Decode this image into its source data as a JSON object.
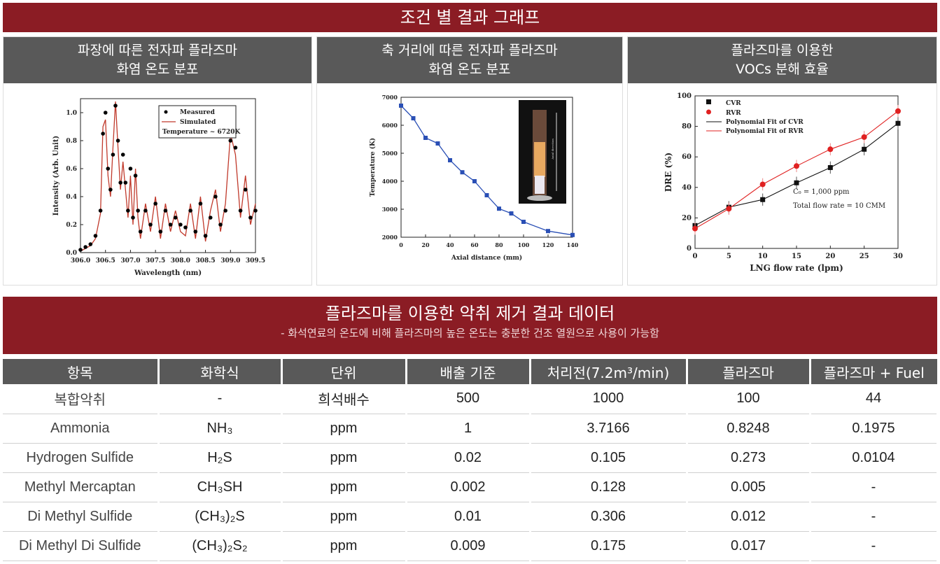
{
  "title": "조건 별 결과 그래프",
  "panels": [
    {
      "title_line1": "파장에 따른 전자파 플라즈마",
      "title_line2": "화염 온도 분포"
    },
    {
      "title_line1": "축 거리에 따른 전자파 플라즈마",
      "title_line2": "화염 온도 분포"
    },
    {
      "title_line1": "플라즈마를 이용한",
      "title_line2": "VOCs 분해 효율"
    }
  ],
  "table_section": {
    "title": "플라즈마를 이용한 악취 제거 결과 데이터",
    "subtitle": "- 화석연료의 온도에 비해 플라즈마의 높은 온도는 충분한 건조 열원으로 사용이 가능함"
  },
  "table": {
    "headers": [
      "항목",
      "화학식",
      "단위",
      "배출 기준",
      "처리전(7.2m³/min)",
      "플라즈마",
      "플라즈마 + Fuel"
    ],
    "rows": [
      [
        "복합악취",
        "-",
        "희석배수",
        "500",
        "1000",
        "100",
        "44"
      ],
      [
        "Ammonia",
        "NH₃",
        "ppm",
        "1",
        "3.7166",
        "0.8248",
        "0.1975"
      ],
      [
        "Hydrogen Sulfide",
        "H₂S",
        "ppm",
        "0.02",
        "0.105",
        "0.273",
        "0.0104"
      ],
      [
        "Methyl Mercaptan",
        "CH₃SH",
        "ppm",
        "0.002",
        "0.128",
        "0.005",
        "-"
      ],
      [
        "Di Methyl Sulfide",
        "(CH₃)₂S",
        "ppm",
        "0.01",
        "0.306",
        "0.012",
        "-"
      ],
      [
        "Di Methyl Di Sulfide",
        "(CH₃)₂S₂",
        "ppm",
        "0.009",
        "0.175",
        "0.017",
        "-"
      ]
    ]
  },
  "chart_data": [
    {
      "type": "line",
      "xlabel": "Wavelength (nm)",
      "ylabel": "Intensity (Arb. Unit)",
      "xlim": [
        306.0,
        309.5
      ],
      "ylim": [
        0.0,
        1.1
      ],
      "xticks": [
        "306.0",
        "306.5",
        "307.0",
        "307.5",
        "308.0",
        "308.5",
        "309.0",
        "309.5"
      ],
      "yticks": [
        "0.0",
        "0.2",
        "0.4",
        "0.6",
        "0.8",
        "1.0"
      ],
      "legend": [
        "Measured",
        "Simulated",
        "Temperature ~ 6720K"
      ],
      "series": [
        {
          "name": "Measured",
          "style": "points",
          "color": "#000000",
          "x": [
            306.0,
            306.1,
            306.2,
            306.3,
            306.4,
            306.45,
            306.5,
            306.55,
            306.6,
            306.65,
            306.7,
            306.75,
            306.8,
            306.85,
            306.9,
            306.95,
            307.0,
            307.05,
            307.1,
            307.15,
            307.2,
            307.3,
            307.4,
            307.5,
            307.6,
            307.7,
            307.8,
            307.9,
            308.0,
            308.1,
            308.2,
            308.3,
            308.4,
            308.5,
            308.6,
            308.7,
            308.8,
            308.9,
            309.0,
            309.1,
            309.2,
            309.3,
            309.4,
            309.5
          ],
          "y": [
            0.02,
            0.04,
            0.06,
            0.12,
            0.3,
            0.85,
            1.0,
            0.6,
            0.45,
            0.7,
            1.05,
            0.8,
            0.5,
            0.7,
            0.5,
            0.3,
            0.6,
            0.25,
            0.55,
            0.3,
            0.15,
            0.3,
            0.2,
            0.35,
            0.15,
            0.3,
            0.2,
            0.25,
            0.2,
            0.18,
            0.3,
            0.15,
            0.35,
            0.12,
            0.25,
            0.4,
            0.2,
            0.3,
            0.8,
            0.75,
            0.3,
            0.45,
            0.25,
            0.3
          ]
        },
        {
          "name": "Simulated",
          "style": "line",
          "color": "#c0392b",
          "x": [
            306.0,
            306.1,
            306.2,
            306.3,
            306.4,
            306.45,
            306.5,
            306.55,
            306.6,
            306.65,
            306.7,
            306.75,
            306.8,
            306.85,
            306.9,
            306.95,
            307.0,
            307.05,
            307.1,
            307.15,
            307.2,
            307.3,
            307.4,
            307.5,
            307.6,
            307.7,
            307.8,
            307.9,
            308.0,
            308.1,
            308.2,
            308.3,
            308.4,
            308.5,
            308.6,
            308.7,
            308.8,
            308.9,
            309.0,
            309.1,
            309.2,
            309.3,
            309.4,
            309.5
          ],
          "y": [
            0.01,
            0.03,
            0.05,
            0.1,
            0.28,
            0.9,
            0.95,
            0.55,
            0.4,
            0.75,
            1.08,
            0.75,
            0.45,
            0.65,
            0.45,
            0.25,
            0.55,
            0.2,
            0.6,
            0.25,
            0.1,
            0.35,
            0.15,
            0.4,
            0.1,
            0.35,
            0.15,
            0.3,
            0.15,
            0.12,
            0.35,
            0.1,
            0.4,
            0.08,
            0.3,
            0.45,
            0.15,
            0.35,
            0.85,
            0.7,
            0.25,
            0.55,
            0.2,
            0.35
          ]
        }
      ]
    },
    {
      "type": "line",
      "xlabel": "Axial distance (mm)",
      "ylabel": "Temperature (K)",
      "xlim": [
        0,
        140
      ],
      "ylim": [
        2000,
        7000
      ],
      "xticks": [
        "0",
        "20",
        "40",
        "60",
        "80",
        "100",
        "120",
        "140"
      ],
      "yticks": [
        "2000",
        "3000",
        "4000",
        "5000",
        "6000",
        "7000"
      ],
      "inset_label": "Axial direction",
      "series": [
        {
          "name": "Temperature",
          "color": "#2a4fb5",
          "x": [
            0,
            10,
            20,
            30,
            40,
            50,
            60,
            70,
            80,
            90,
            100,
            120,
            140
          ],
          "y": [
            6700,
            6250,
            5550,
            5350,
            4750,
            4320,
            4000,
            3500,
            3020,
            2850,
            2550,
            2220,
            2080
          ]
        }
      ]
    },
    {
      "type": "scatter",
      "xlabel": "LNG flow rate (lpm)",
      "ylabel": "DRE (%)",
      "xlim": [
        0,
        30
      ],
      "ylim": [
        0,
        100
      ],
      "xticks": [
        "0",
        "5",
        "10",
        "15",
        "20",
        "25",
        "30"
      ],
      "yticks": [
        "0",
        "20",
        "40",
        "60",
        "80",
        "100"
      ],
      "legend": [
        "CVR",
        "RVR",
        "Polynomial Fit of CVR",
        "Polynomial Fit of RVR"
      ],
      "annotations": [
        "C₀ = 1,000 ppm",
        "Total flow rate = 10 CMM"
      ],
      "series": [
        {
          "name": "CVR",
          "color": "#111111",
          "x": [
            0,
            5,
            10,
            15,
            20,
            25,
            30
          ],
          "y": [
            15,
            27,
            32,
            43,
            53,
            65,
            82
          ]
        },
        {
          "name": "RVR",
          "color": "#e02020",
          "x": [
            0,
            5,
            10,
            15,
            20,
            25,
            30
          ],
          "y": [
            13,
            26,
            42,
            54,
            65,
            73,
            90
          ]
        }
      ]
    }
  ]
}
